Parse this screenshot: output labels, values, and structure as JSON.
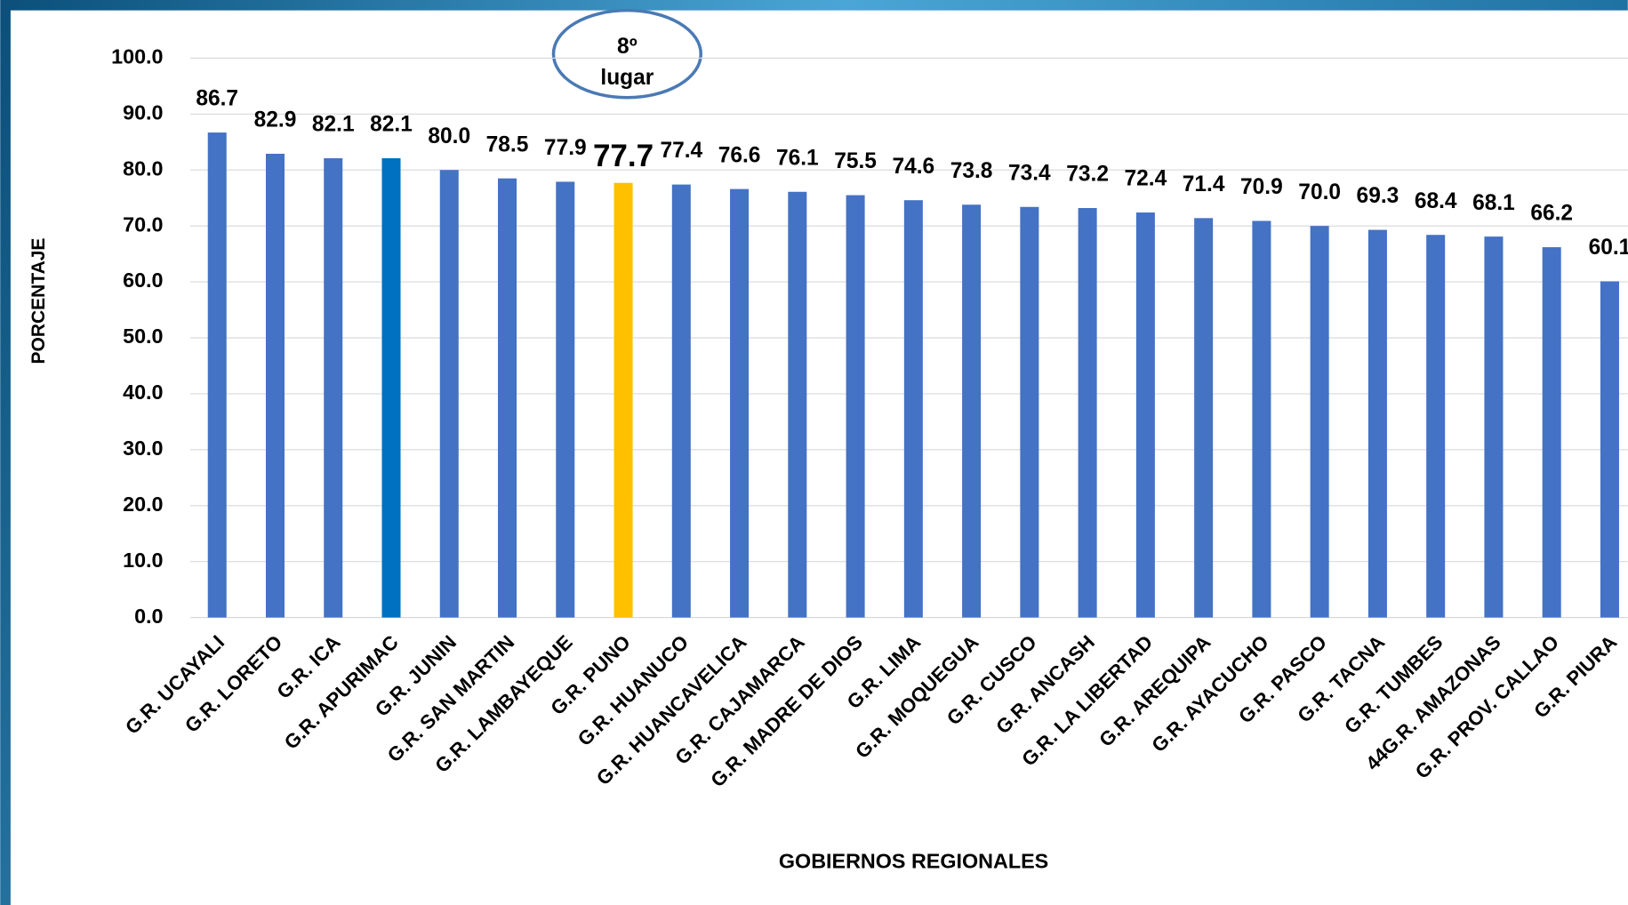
{
  "chart_data": {
    "type": "bar",
    "y_label": "PORCENTAJE",
    "x_label": "GOBIERNOS REGIONALES",
    "annotation": [
      "8º",
      "lugar"
    ],
    "categories": [
      "G.R. UCAYALI",
      "G.R. LORETO",
      "G.R. ICA",
      "G.R. APURIMAC",
      "G.R. JUNIN",
      "G.R. SAN MARTIN",
      "G.R. LAMBAYEQUE",
      "G.R. PUNO",
      "G.R. HUANUCO",
      "G.R. HUANCAVELICA",
      "G.R. CAJAMARCA",
      "G.R. MADRE DE DIOS",
      "G.R. LIMA",
      "G.R. MOQUEGUA",
      "G.R. CUSCO",
      "G.R. ANCASH",
      "G.R. LA LIBERTAD",
      "G.R. AREQUIPA",
      "G.R. AYACUCHO",
      "G.R. PASCO",
      "G.R. TACNA",
      "G.R. TUMBES",
      "44G.R. AMAZONAS",
      "G.R. PROV. CALLAO",
      "G.R. PIURA"
    ],
    "values": [
      86.7,
      82.9,
      82.1,
      82.1,
      80.0,
      78.5,
      77.9,
      77.7,
      77.4,
      76.6,
      76.1,
      75.5,
      74.6,
      73.8,
      73.4,
      73.2,
      72.4,
      71.4,
      70.9,
      70.0,
      69.3,
      68.4,
      68.1,
      66.2,
      60.1
    ],
    "value_labels": [
      "86.7",
      "82.9",
      "82.1",
      "82.1",
      "80.0",
      "78.5",
      "77.9",
      "77.7",
      "77.4",
      "76.6",
      "76.1",
      "75.5",
      "74.6",
      "73.8",
      "73.4",
      "73.2",
      "72.4",
      "71.4",
      "70.9",
      "70.0",
      "69.3",
      "68.4",
      "68.1",
      "66.2",
      "60.1"
    ],
    "colors": [
      "#4472c4",
      "#4472c4",
      "#4472c4",
      "#0070c0",
      "#4472c4",
      "#4472c4",
      "#4472c4",
      "#ffc000",
      "#4472c4",
      "#4472c4",
      "#4472c4",
      "#4472c4",
      "#4472c4",
      "#4472c4",
      "#4472c4",
      "#4472c4",
      "#4472c4",
      "#4472c4",
      "#4472c4",
      "#4472c4",
      "#4472c4",
      "#4472c4",
      "#4472c4",
      "#4472c4",
      "#4472c4"
    ],
    "ylim": [
      0,
      100
    ],
    "yticks": [
      {
        "value": 0,
        "label": "0.0"
      },
      {
        "value": 10,
        "label": "10.0"
      },
      {
        "value": 20,
        "label": "20.0"
      },
      {
        "value": 30,
        "label": "30.0"
      },
      {
        "value": 40,
        "label": "40.0"
      },
      {
        "value": 50,
        "label": "50.0"
      },
      {
        "value": 60,
        "label": "60.0"
      },
      {
        "value": 70,
        "label": "70.0"
      },
      {
        "value": 80,
        "label": "80.0"
      },
      {
        "value": 90,
        "label": "90.0"
      },
      {
        "value": 100,
        "label": "100.0"
      }
    ],
    "grid": true
  }
}
